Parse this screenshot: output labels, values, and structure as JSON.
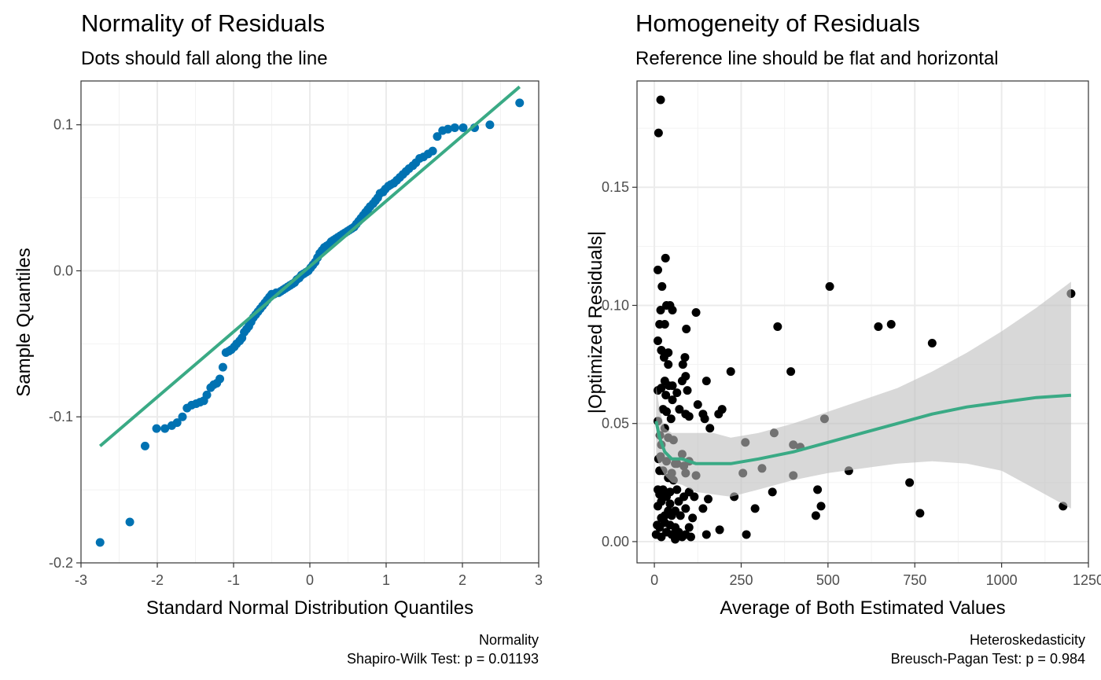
{
  "chart_data": [
    {
      "type": "scatter",
      "title": "Normality of Residuals",
      "subtitle": "Dots should fall along the line",
      "xlabel": "Standard Normal Distribution Quantiles",
      "ylabel": "Sample Quantiles",
      "caption_line1": "Normality",
      "caption_line2": "Shapiro-Wilk Test: p = 0.01193",
      "xlim": [
        -3,
        3
      ],
      "ylim": [
        -0.2,
        0.13
      ],
      "x_ticks": [
        -3,
        -2,
        -1,
        0,
        1,
        2,
        3
      ],
      "x_tick_labels": [
        "-3",
        "-2",
        "-1",
        "0",
        "1",
        "2",
        "3"
      ],
      "y_ticks": [
        -0.2,
        -0.1,
        0.0,
        0.1
      ],
      "y_tick_labels": [
        "-0.2",
        "-0.1",
        "0.0",
        "0.1"
      ],
      "grid": true,
      "point_color": "#0072B2",
      "line_color": "#3AAA85",
      "reference_line": {
        "x": [
          -2.75,
          2.75
        ],
        "y": [
          -0.12,
          0.126
        ]
      },
      "points": [
        [
          -2.75,
          -0.186
        ],
        [
          -2.36,
          -0.172
        ],
        [
          -2.16,
          -0.12
        ],
        [
          -2.01,
          -0.108
        ],
        [
          -1.9,
          -0.108
        ],
        [
          -1.81,
          -0.106
        ],
        [
          -1.74,
          -0.104
        ],
        [
          -1.67,
          -0.1
        ],
        [
          -1.61,
          -0.094
        ],
        [
          -1.55,
          -0.092
        ],
        [
          -1.49,
          -0.091
        ],
        [
          -1.44,
          -0.09
        ],
        [
          -1.39,
          -0.089
        ],
        [
          -1.35,
          -0.085
        ],
        [
          -1.3,
          -0.08
        ],
        [
          -1.26,
          -0.078
        ],
        [
          -1.22,
          -0.077
        ],
        [
          -1.18,
          -0.074
        ],
        [
          -1.14,
          -0.066
        ],
        [
          -1.1,
          -0.056
        ],
        [
          -1.06,
          -0.055
        ],
        [
          -1.03,
          -0.054
        ],
        [
          -0.99,
          -0.052
        ],
        [
          -0.96,
          -0.05
        ],
        [
          -0.92,
          -0.048
        ],
        [
          -0.89,
          -0.046
        ],
        [
          -0.86,
          -0.042
        ],
        [
          -0.83,
          -0.04
        ],
        [
          -0.8,
          -0.038
        ],
        [
          -0.77,
          -0.035
        ],
        [
          -0.74,
          -0.032
        ],
        [
          -0.71,
          -0.03
        ],
        [
          -0.68,
          -0.028
        ],
        [
          -0.65,
          -0.026
        ],
        [
          -0.62,
          -0.024
        ],
        [
          -0.59,
          -0.022
        ],
        [
          -0.56,
          -0.02
        ],
        [
          -0.53,
          -0.018
        ],
        [
          -0.5,
          -0.016
        ],
        [
          -0.47,
          -0.016
        ],
        [
          -0.44,
          -0.015
        ],
        [
          -0.41,
          -0.015
        ],
        [
          -0.38,
          -0.014
        ],
        [
          -0.35,
          -0.013
        ],
        [
          -0.32,
          -0.012
        ],
        [
          -0.29,
          -0.011
        ],
        [
          -0.26,
          -0.01
        ],
        [
          -0.23,
          -0.009
        ],
        [
          -0.2,
          -0.008
        ],
        [
          -0.17,
          -0.006
        ],
        [
          -0.14,
          -0.005
        ],
        [
          -0.11,
          -0.003
        ],
        [
          -0.08,
          -0.002
        ],
        [
          -0.05,
          -0.001
        ],
        [
          -0.02,
          0.0
        ],
        [
          0.01,
          0.002
        ],
        [
          0.04,
          0.004
        ],
        [
          0.07,
          0.006
        ],
        [
          0.1,
          0.009
        ],
        [
          0.13,
          0.012
        ],
        [
          0.16,
          0.014
        ],
        [
          0.19,
          0.016
        ],
        [
          0.22,
          0.017
        ],
        [
          0.25,
          0.018
        ],
        [
          0.28,
          0.02
        ],
        [
          0.31,
          0.021
        ],
        [
          0.34,
          0.022
        ],
        [
          0.37,
          0.023
        ],
        [
          0.4,
          0.024
        ],
        [
          0.43,
          0.025
        ],
        [
          0.46,
          0.026
        ],
        [
          0.49,
          0.027
        ],
        [
          0.52,
          0.028
        ],
        [
          0.55,
          0.029
        ],
        [
          0.58,
          0.03
        ],
        [
          0.61,
          0.032
        ],
        [
          0.64,
          0.034
        ],
        [
          0.67,
          0.036
        ],
        [
          0.7,
          0.038
        ],
        [
          0.73,
          0.04
        ],
        [
          0.76,
          0.042
        ],
        [
          0.79,
          0.044
        ],
        [
          0.83,
          0.046
        ],
        [
          0.86,
          0.048
        ],
        [
          0.89,
          0.05
        ],
        [
          0.92,
          0.053
        ],
        [
          0.96,
          0.054
        ],
        [
          0.99,
          0.056
        ],
        [
          1.03,
          0.058
        ],
        [
          1.06,
          0.059
        ],
        [
          1.1,
          0.06
        ],
        [
          1.14,
          0.062
        ],
        [
          1.18,
          0.064
        ],
        [
          1.22,
          0.066
        ],
        [
          1.26,
          0.068
        ],
        [
          1.3,
          0.07
        ],
        [
          1.35,
          0.072
        ],
        [
          1.39,
          0.074
        ],
        [
          1.44,
          0.077
        ],
        [
          1.49,
          0.078
        ],
        [
          1.55,
          0.08
        ],
        [
          1.61,
          0.082
        ],
        [
          1.67,
          0.092
        ],
        [
          1.74,
          0.096
        ],
        [
          1.81,
          0.097
        ],
        [
          1.9,
          0.098
        ],
        [
          2.01,
          0.098
        ],
        [
          2.16,
          0.098
        ],
        [
          2.36,
          0.1
        ],
        [
          2.75,
          0.115
        ]
      ]
    },
    {
      "type": "scatter",
      "title": "Homogeneity of Residuals",
      "subtitle": "Reference line should be flat and horizontal",
      "xlabel": "Average of Both Estimated Values",
      "ylabel": "|Optimized Residuals|",
      "caption_line1": "Heteroskedasticity",
      "caption_line2": "Breusch-Pagan Test: p = 0.984",
      "xlim": [
        -50,
        1250
      ],
      "ylim": [
        -0.009,
        0.195
      ],
      "x_ticks": [
        0,
        250,
        500,
        750,
        1000,
        1250
      ],
      "x_tick_labels": [
        "0",
        "250",
        "500",
        "750",
        "1000",
        "1250"
      ],
      "y_ticks": [
        0.0,
        0.05,
        0.1,
        0.15
      ],
      "y_tick_labels": [
        "0.00",
        "0.05",
        "0.10",
        "0.15"
      ],
      "grid": true,
      "point_color": "#000000",
      "line_color": "#3AAA85",
      "band_color": "#bebebe",
      "smooth_line": {
        "x": [
          5,
          15,
          30,
          50,
          80,
          120,
          170,
          220,
          300,
          400,
          500,
          600,
          700,
          800,
          900,
          1000,
          1100,
          1200
        ],
        "y": [
          0.051,
          0.044,
          0.038,
          0.035,
          0.035,
          0.033,
          0.033,
          0.033,
          0.035,
          0.038,
          0.042,
          0.046,
          0.05,
          0.054,
          0.057,
          0.059,
          0.061,
          0.062
        ]
      },
      "confidence_band": {
        "x": [
          5,
          15,
          30,
          50,
          80,
          120,
          170,
          220,
          300,
          400,
          500,
          600,
          700,
          800,
          900,
          1000,
          1100,
          1200
        ],
        "upper": [
          0.066,
          0.056,
          0.048,
          0.046,
          0.046,
          0.046,
          0.046,
          0.044,
          0.046,
          0.05,
          0.055,
          0.06,
          0.065,
          0.072,
          0.08,
          0.089,
          0.099,
          0.11
        ],
        "lower": [
          0.036,
          0.032,
          0.028,
          0.025,
          0.024,
          0.021,
          0.02,
          0.019,
          0.022,
          0.026,
          0.029,
          0.031,
          0.033,
          0.034,
          0.033,
          0.03,
          0.022,
          0.014
        ]
      },
      "points": [
        [
          18,
          0.187
        ],
        [
          12,
          0.173
        ],
        [
          32,
          0.12
        ],
        [
          10,
          0.115
        ],
        [
          22,
          0.108
        ],
        [
          505,
          0.108
        ],
        [
          1200,
          0.105
        ],
        [
          35,
          0.1
        ],
        [
          45,
          0.1
        ],
        [
          52,
          0.098
        ],
        [
          18,
          0.098
        ],
        [
          120,
          0.097
        ],
        [
          30,
          0.092
        ],
        [
          15,
          0.092
        ],
        [
          355,
          0.091
        ],
        [
          645,
          0.091
        ],
        [
          682,
          0.092
        ],
        [
          92,
          0.09
        ],
        [
          10,
          0.085
        ],
        [
          800,
          0.084
        ],
        [
          20,
          0.081
        ],
        [
          40,
          0.08
        ],
        [
          28,
          0.078
        ],
        [
          88,
          0.078
        ],
        [
          82,
          0.075
        ],
        [
          40,
          0.075
        ],
        [
          220,
          0.072
        ],
        [
          393,
          0.072
        ],
        [
          90,
          0.07
        ],
        [
          30,
          0.068
        ],
        [
          80,
          0.068
        ],
        [
          150,
          0.068
        ],
        [
          52,
          0.066
        ],
        [
          42,
          0.066
        ],
        [
          20,
          0.065
        ],
        [
          10,
          0.064
        ],
        [
          95,
          0.064
        ],
        [
          65,
          0.063
        ],
        [
          33,
          0.062
        ],
        [
          52,
          0.06
        ],
        [
          125,
          0.058
        ],
        [
          25,
          0.056
        ],
        [
          72,
          0.056
        ],
        [
          195,
          0.056
        ],
        [
          35,
          0.055
        ],
        [
          185,
          0.054
        ],
        [
          90,
          0.054
        ],
        [
          140,
          0.054
        ],
        [
          100,
          0.053
        ],
        [
          145,
          0.052
        ],
        [
          48,
          0.052
        ],
        [
          490,
          0.052
        ],
        [
          10,
          0.051
        ],
        [
          160,
          0.048
        ],
        [
          30,
          0.048
        ],
        [
          345,
          0.046
        ],
        [
          16,
          0.045
        ],
        [
          40,
          0.044
        ],
        [
          55,
          0.043
        ],
        [
          262,
          0.042
        ],
        [
          20,
          0.041
        ],
        [
          400,
          0.041
        ],
        [
          420,
          0.04
        ],
        [
          80,
          0.037
        ],
        [
          18,
          0.036
        ],
        [
          12,
          0.035
        ],
        [
          100,
          0.034
        ],
        [
          35,
          0.034
        ],
        [
          60,
          0.033
        ],
        [
          65,
          0.033
        ],
        [
          85,
          0.032
        ],
        [
          310,
          0.031
        ],
        [
          15,
          0.03
        ],
        [
          25,
          0.03
        ],
        [
          50,
          0.029
        ],
        [
          90,
          0.029
        ],
        [
          255,
          0.029
        ],
        [
          560,
          0.03
        ],
        [
          40,
          0.027
        ],
        [
          55,
          0.026
        ],
        [
          120,
          0.028
        ],
        [
          400,
          0.028
        ],
        [
          10,
          0.022
        ],
        [
          25,
          0.022
        ],
        [
          45,
          0.021
        ],
        [
          65,
          0.022
        ],
        [
          100,
          0.021
        ],
        [
          340,
          0.021
        ],
        [
          470,
          0.022
        ],
        [
          735,
          0.025
        ],
        [
          15,
          0.02
        ],
        [
          35,
          0.019
        ],
        [
          85,
          0.019
        ],
        [
          115,
          0.019
        ],
        [
          155,
          0.018
        ],
        [
          230,
          0.019
        ],
        [
          70,
          0.017
        ],
        [
          20,
          0.017
        ],
        [
          45,
          0.016
        ],
        [
          10,
          0.015
        ],
        [
          480,
          0.015
        ],
        [
          1177,
          0.015
        ],
        [
          40,
          0.013
        ],
        [
          60,
          0.013
        ],
        [
          90,
          0.014
        ],
        [
          140,
          0.014
        ],
        [
          290,
          0.014
        ],
        [
          30,
          0.011
        ],
        [
          50,
          0.011
        ],
        [
          75,
          0.011
        ],
        [
          20,
          0.01
        ],
        [
          110,
          0.01
        ],
        [
          465,
          0.011
        ],
        [
          765,
          0.012
        ],
        [
          8,
          0.007
        ],
        [
          30,
          0.008
        ],
        [
          45,
          0.007
        ],
        [
          60,
          0.006
        ],
        [
          15,
          0.006
        ],
        [
          100,
          0.006
        ],
        [
          35,
          0.004
        ],
        [
          70,
          0.004
        ],
        [
          90,
          0.003
        ],
        [
          188,
          0.005
        ],
        [
          5,
          0.003
        ],
        [
          20,
          0.002
        ],
        [
          50,
          0.003
        ],
        [
          80,
          0.002
        ],
        [
          150,
          0.003
        ],
        [
          265,
          0.003
        ],
        [
          60,
          0.001
        ],
        [
          105,
          0.002
        ]
      ]
    }
  ]
}
